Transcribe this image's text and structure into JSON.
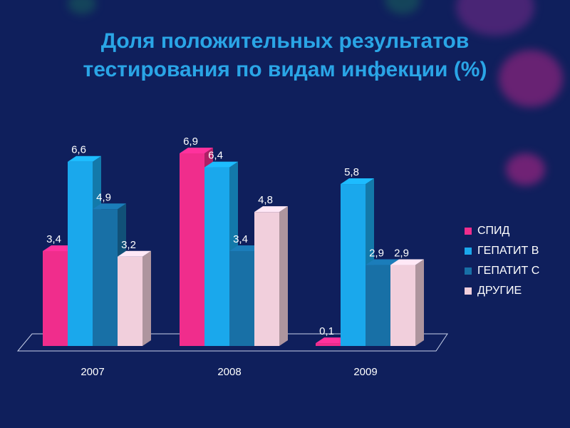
{
  "title_lines": [
    "Доля положительных результатов",
    "тестирования по видам инфекции (%)"
  ],
  "chart_data": {
    "type": "bar",
    "title": "Доля положительных результатов тестирования по видам инфекции (%)",
    "categories": [
      "2007",
      "2008",
      "2009"
    ],
    "series": [
      {
        "name": "СПИД",
        "values": [
          3.4,
          6.9,
          0.1
        ],
        "labels": [
          "3,4",
          "6,9",
          "0,1"
        ],
        "color": "#f02d8c"
      },
      {
        "name": "ГЕПАТИТ В",
        "values": [
          6.6,
          6.4,
          5.8
        ],
        "labels": [
          "6,6",
          "6,4",
          "5,8"
        ],
        "color": "#1aa8ec"
      },
      {
        "name": "ГЕПАТИТ С",
        "values": [
          4.9,
          3.4,
          2.9
        ],
        "labels": [
          "4,9",
          "3,4",
          "2,9"
        ],
        "color": "#1870a6"
      },
      {
        "name": "ДРУГИЕ",
        "values": [
          3.2,
          4.8,
          2.9
        ],
        "labels": [
          "3,2",
          "4,8",
          "2,9"
        ],
        "color": "#f1cfdc"
      }
    ],
    "ylim": [
      0,
      7.2
    ],
    "legend_position": "right",
    "grid": false,
    "chart_style": "3d-clustered-bar"
  }
}
